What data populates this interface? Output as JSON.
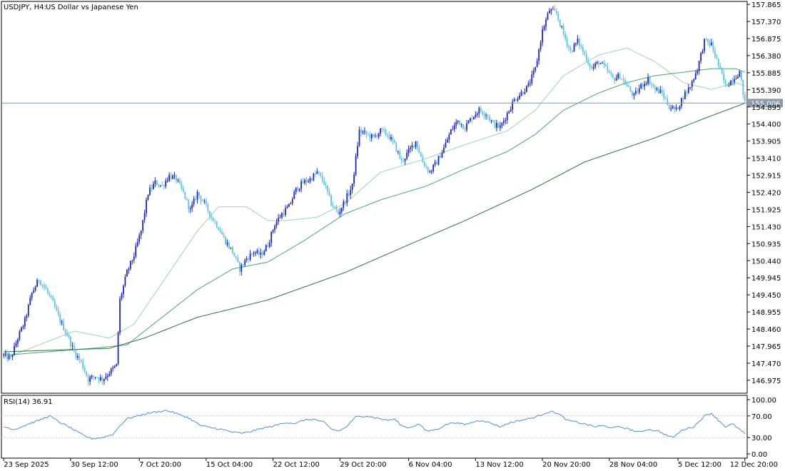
{
  "header": {
    "symbol": "USDJPY, H4:",
    "description": "US Dollar vs Japanese Yen"
  },
  "colors": {
    "background": "#ffffff",
    "bull_candle": "#1c24c8",
    "bear_candle": "#5bc2e8",
    "ma_fast": "#9ad8a8",
    "ma_mid": "#4aa868",
    "ma_slow": "#2e6e48",
    "rsi_line": "#4a90d9",
    "current_price_line": "#8c9aa8",
    "grid": "#c8c8c8"
  },
  "chart_data": [
    {
      "type": "candlestick",
      "name": "main",
      "ylim": [
        146.6,
        157.95
      ],
      "y_ticks": [
        "157.865",
        "157.370",
        "156.875",
        "156.380",
        "155.885",
        "155.390",
        "154.895",
        "154.400",
        "153.905",
        "153.410",
        "152.915",
        "152.420",
        "151.925",
        "151.430",
        "150.935",
        "150.440",
        "149.945",
        "149.450",
        "148.955",
        "148.460",
        "147.965",
        "147.470",
        "146.975"
      ],
      "x_ticks": [
        "23 Sep 2025",
        "30 Sep 12:00",
        "7 Oct 20:00",
        "15 Oct 04:00",
        "22 Oct 12:00",
        "29 Oct 20:00",
        "6 Nov 04:00",
        "13 Nov 12:00",
        "20 Nov 20:00",
        "28 Nov 04:00",
        "5 Dec 12:00",
        "12 Dec 20:00"
      ],
      "current_price": "155.006",
      "price_anchors": [
        [
          0,
          147.7
        ],
        [
          4,
          147.6
        ],
        [
          8,
          148.2
        ],
        [
          12,
          148.7
        ],
        [
          16,
          149.5
        ],
        [
          20,
          149.9
        ],
        [
          24,
          149.6
        ],
        [
          28,
          149.2
        ],
        [
          32,
          148.7
        ],
        [
          36,
          148.3
        ],
        [
          40,
          147.8
        ],
        [
          44,
          147.5
        ],
        [
          48,
          147.0
        ],
        [
          52,
          147.1
        ],
        [
          56,
          147.0
        ],
        [
          60,
          147.2
        ],
        [
          64,
          147.4
        ],
        [
          66,
          149.3
        ],
        [
          70,
          150.1
        ],
        [
          74,
          150.6
        ],
        [
          78,
          151.3
        ],
        [
          82,
          152.4
        ],
        [
          86,
          152.7
        ],
        [
          90,
          152.6
        ],
        [
          94,
          152.9
        ],
        [
          98,
          152.8
        ],
        [
          102,
          152.4
        ],
        [
          106,
          151.9
        ],
        [
          110,
          152.4
        ],
        [
          114,
          152.1
        ],
        [
          118,
          151.7
        ],
        [
          122,
          151.4
        ],
        [
          126,
          151.0
        ],
        [
          130,
          150.7
        ],
        [
          134,
          150.2
        ],
        [
          138,
          150.5
        ],
        [
          142,
          150.7
        ],
        [
          146,
          150.6
        ],
        [
          150,
          150.9
        ],
        [
          154,
          151.5
        ],
        [
          158,
          151.8
        ],
        [
          162,
          152.0
        ],
        [
          166,
          152.5
        ],
        [
          170,
          152.7
        ],
        [
          174,
          152.8
        ],
        [
          178,
          153.0
        ],
        [
          182,
          152.7
        ],
        [
          186,
          152.1
        ],
        [
          190,
          151.8
        ],
        [
          194,
          152.2
        ],
        [
          198,
          152.6
        ],
        [
          202,
          154.2
        ],
        [
          206,
          154.1
        ],
        [
          210,
          154.0
        ],
        [
          214,
          154.2
        ],
        [
          218,
          154.1
        ],
        [
          222,
          153.8
        ],
        [
          226,
          153.3
        ],
        [
          230,
          153.6
        ],
        [
          234,
          153.9
        ],
        [
          238,
          153.3
        ],
        [
          242,
          153.0
        ],
        [
          246,
          153.3
        ],
        [
          250,
          153.7
        ],
        [
          254,
          154.2
        ],
        [
          258,
          154.5
        ],
        [
          262,
          154.3
        ],
        [
          266,
          154.6
        ],
        [
          270,
          154.8
        ],
        [
          274,
          154.7
        ],
        [
          278,
          154.4
        ],
        [
          282,
          154.3
        ],
        [
          286,
          154.7
        ],
        [
          290,
          155.1
        ],
        [
          294,
          155.3
        ],
        [
          298,
          155.5
        ],
        [
          302,
          156.0
        ],
        [
          306,
          157.1
        ],
        [
          310,
          157.7
        ],
        [
          314,
          157.6
        ],
        [
          318,
          157.0
        ],
        [
          322,
          156.5
        ],
        [
          326,
          156.8
        ],
        [
          330,
          156.4
        ],
        [
          334,
          156.0
        ],
        [
          338,
          156.2
        ],
        [
          342,
          156.0
        ],
        [
          346,
          155.7
        ],
        [
          350,
          155.8
        ],
        [
          354,
          155.5
        ],
        [
          358,
          155.2
        ],
        [
          362,
          155.5
        ],
        [
          366,
          155.7
        ],
        [
          370,
          155.4
        ],
        [
          374,
          155.3
        ],
        [
          378,
          154.9
        ],
        [
          382,
          154.8
        ],
        [
          386,
          155.2
        ],
        [
          390,
          155.5
        ],
        [
          394,
          156.0
        ],
        [
          398,
          156.8
        ],
        [
          402,
          156.7
        ],
        [
          406,
          156.1
        ],
        [
          410,
          155.5
        ],
        [
          414,
          155.7
        ],
        [
          418,
          155.9
        ],
        [
          421,
          155.0
        ]
      ],
      "ma_fast_anchors": [
        [
          0,
          147.6
        ],
        [
          40,
          148.4
        ],
        [
          60,
          148.2
        ],
        [
          74,
          148.6
        ],
        [
          90,
          149.8
        ],
        [
          110,
          151.3
        ],
        [
          122,
          152.0
        ],
        [
          138,
          152.0
        ],
        [
          150,
          151.6
        ],
        [
          160,
          151.6
        ],
        [
          178,
          151.7
        ],
        [
          194,
          152.1
        ],
        [
          214,
          153.0
        ],
        [
          240,
          153.4
        ],
        [
          262,
          153.8
        ],
        [
          286,
          154.2
        ],
        [
          302,
          154.8
        ],
        [
          318,
          155.8
        ],
        [
          338,
          156.4
        ],
        [
          354,
          156.6
        ],
        [
          370,
          156.2
        ],
        [
          386,
          155.6
        ],
        [
          402,
          155.4
        ],
        [
          416,
          155.6
        ],
        [
          421,
          155.5
        ]
      ],
      "ma_mid_anchors": [
        [
          0,
          147.7
        ],
        [
          50,
          147.9
        ],
        [
          70,
          148.0
        ],
        [
          90,
          148.8
        ],
        [
          110,
          149.6
        ],
        [
          130,
          150.2
        ],
        [
          150,
          150.4
        ],
        [
          170,
          151.0
        ],
        [
          194,
          151.8
        ],
        [
          214,
          152.2
        ],
        [
          240,
          152.6
        ],
        [
          262,
          153.1
        ],
        [
          286,
          153.6
        ],
        [
          302,
          154.1
        ],
        [
          318,
          154.8
        ],
        [
          338,
          155.3
        ],
        [
          354,
          155.6
        ],
        [
          370,
          155.8
        ],
        [
          386,
          155.9
        ],
        [
          402,
          156.0
        ],
        [
          416,
          156.0
        ],
        [
          421,
          155.9
        ]
      ],
      "ma_slow_anchors": [
        [
          0,
          147.8
        ],
        [
          60,
          147.9
        ],
        [
          80,
          148.2
        ],
        [
          110,
          148.8
        ],
        [
          150,
          149.3
        ],
        [
          194,
          150.1
        ],
        [
          230,
          150.9
        ],
        [
          262,
          151.6
        ],
        [
          300,
          152.5
        ],
        [
          330,
          153.3
        ],
        [
          370,
          154.0
        ],
        [
          400,
          154.6
        ],
        [
          421,
          155.0
        ]
      ]
    },
    {
      "type": "line",
      "name": "rsi",
      "title": "RSI(14) 36.91",
      "ylim": [
        0,
        100
      ],
      "y_ticks": [
        "100.00",
        "70.00",
        "30.00",
        "0.00"
      ],
      "levels": [
        70,
        30
      ],
      "rsi_anchors": [
        [
          0,
          50
        ],
        [
          6,
          45
        ],
        [
          14,
          55
        ],
        [
          20,
          62
        ],
        [
          26,
          70
        ],
        [
          32,
          58
        ],
        [
          38,
          48
        ],
        [
          42,
          40
        ],
        [
          46,
          33
        ],
        [
          50,
          28
        ],
        [
          56,
          30
        ],
        [
          62,
          36
        ],
        [
          66,
          52
        ],
        [
          70,
          65
        ],
        [
          76,
          70
        ],
        [
          82,
          75
        ],
        [
          88,
          78
        ],
        [
          92,
          80
        ],
        [
          96,
          77
        ],
        [
          100,
          72
        ],
        [
          104,
          68
        ],
        [
          108,
          60
        ],
        [
          112,
          52
        ],
        [
          118,
          48
        ],
        [
          124,
          45
        ],
        [
          130,
          40
        ],
        [
          136,
          38
        ],
        [
          142,
          43
        ],
        [
          148,
          48
        ],
        [
          154,
          52
        ],
        [
          160,
          58
        ],
        [
          166,
          56
        ],
        [
          170,
          62
        ],
        [
          176,
          64
        ],
        [
          182,
          58
        ],
        [
          186,
          46
        ],
        [
          190,
          42
        ],
        [
          194,
          48
        ],
        [
          200,
          68
        ],
        [
          206,
          70
        ],
        [
          212,
          66
        ],
        [
          218,
          62
        ],
        [
          222,
          64
        ],
        [
          226,
          52
        ],
        [
          230,
          48
        ],
        [
          236,
          55
        ],
        [
          240,
          42
        ],
        [
          246,
          45
        ],
        [
          252,
          55
        ],
        [
          256,
          58
        ],
        [
          262,
          54
        ],
        [
          268,
          60
        ],
        [
          272,
          62
        ],
        [
          278,
          55
        ],
        [
          282,
          50
        ],
        [
          288,
          58
        ],
        [
          294,
          62
        ],
        [
          300,
          66
        ],
        [
          304,
          70
        ],
        [
          308,
          76
        ],
        [
          312,
          78
        ],
        [
          316,
          72
        ],
        [
          320,
          62
        ],
        [
          326,
          58
        ],
        [
          330,
          55
        ],
        [
          336,
          50
        ],
        [
          340,
          52
        ],
        [
          346,
          48
        ],
        [
          350,
          50
        ],
        [
          356,
          45
        ],
        [
          360,
          40
        ],
        [
          366,
          45
        ],
        [
          372,
          42
        ],
        [
          376,
          35
        ],
        [
          380,
          30
        ],
        [
          386,
          45
        ],
        [
          392,
          50
        ],
        [
          398,
          70
        ],
        [
          402,
          75
        ],
        [
          406,
          62
        ],
        [
          410,
          50
        ],
        [
          414,
          55
        ],
        [
          418,
          45
        ],
        [
          421,
          37
        ]
      ]
    }
  ]
}
